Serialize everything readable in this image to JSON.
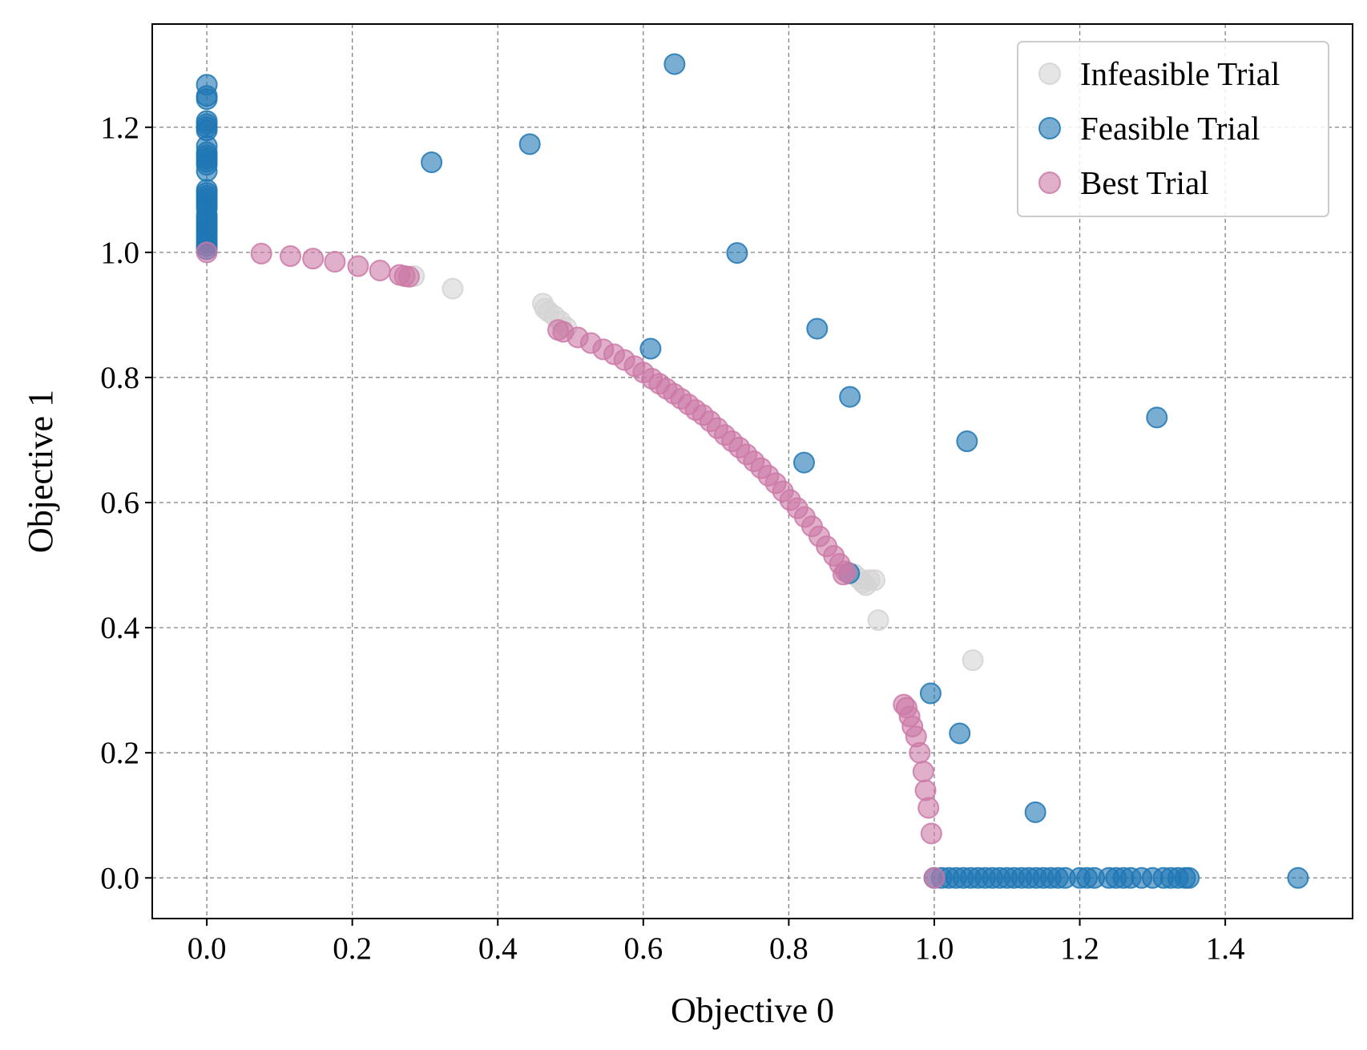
{
  "chart_data": {
    "type": "scatter",
    "title": "",
    "xlabel": "Objective 0",
    "ylabel": "Objective 1",
    "xlim": [
      -0.075,
      1.575
    ],
    "ylim": [
      -0.065,
      1.365
    ],
    "x_ticks": [
      0.0,
      0.2,
      0.4,
      0.6,
      0.8,
      1.0,
      1.2,
      1.4
    ],
    "y_ticks": [
      0.0,
      0.2,
      0.4,
      0.6,
      0.8,
      1.0,
      1.2
    ],
    "x_tick_labels": [
      "0.0",
      "0.2",
      "0.4",
      "0.6",
      "0.8",
      "1.0",
      "1.2",
      "1.4"
    ],
    "y_tick_labels": [
      "0.0",
      "0.2",
      "0.4",
      "0.6",
      "0.8",
      "1.0",
      "1.2"
    ],
    "grid": true,
    "grid_style": "dashed",
    "legend_position": "top-right",
    "series": [
      {
        "name": "Infeasible Trial",
        "color": "#d3d3d3",
        "points": [
          [
            0.285,
            0.962
          ],
          [
            0.338,
            0.942
          ],
          [
            0.462,
            0.918
          ],
          [
            0.465,
            0.91
          ],
          [
            0.47,
            0.905
          ],
          [
            0.478,
            0.898
          ],
          [
            0.486,
            0.89
          ],
          [
            0.494,
            0.88
          ],
          [
            0.89,
            0.485
          ],
          [
            0.897,
            0.478
          ],
          [
            0.902,
            0.472
          ],
          [
            0.906,
            0.468
          ],
          [
            0.911,
            0.476
          ],
          [
            0.918,
            0.476
          ],
          [
            0.923,
            0.412
          ],
          [
            1.053,
            0.348
          ]
        ]
      },
      {
        "name": "Feasible Trial",
        "color": "#1f77b4",
        "points": [
          [
            0.0,
            1.268
          ],
          [
            0.0,
            1.25
          ],
          [
            0.0,
            1.245
          ],
          [
            0.0,
            1.21
          ],
          [
            0.0,
            1.205
          ],
          [
            0.0,
            1.2
          ],
          [
            0.0,
            1.195
          ],
          [
            0.0,
            1.17
          ],
          [
            0.0,
            1.16
          ],
          [
            0.0,
            1.155
          ],
          [
            0.0,
            1.15
          ],
          [
            0.0,
            1.145
          ],
          [
            0.0,
            1.14
          ],
          [
            0.0,
            1.13
          ],
          [
            0.0,
            1.1
          ],
          [
            0.0,
            1.095
          ],
          [
            0.0,
            1.09
          ],
          [
            0.0,
            1.085
          ],
          [
            0.0,
            1.08
          ],
          [
            0.0,
            1.075
          ],
          [
            0.0,
            1.07
          ],
          [
            0.0,
            1.06
          ],
          [
            0.0,
            1.055
          ],
          [
            0.0,
            1.05
          ],
          [
            0.0,
            1.045
          ],
          [
            0.0,
            1.04
          ],
          [
            0.0,
            1.035
          ],
          [
            0.0,
            1.03
          ],
          [
            0.0,
            1.025
          ],
          [
            0.0,
            1.02
          ],
          [
            0.0,
            1.015
          ],
          [
            0.0,
            1.01
          ],
          [
            0.0,
            1.005
          ],
          [
            0.643,
            1.301
          ],
          [
            0.444,
            1.173
          ],
          [
            0.309,
            1.144
          ],
          [
            0.729,
            0.999
          ],
          [
            0.839,
            0.878
          ],
          [
            0.61,
            0.846
          ],
          [
            0.884,
            0.769
          ],
          [
            0.821,
            0.664
          ],
          [
            1.045,
            0.698
          ],
          [
            1.306,
            0.736
          ],
          [
            0.883,
            0.487
          ],
          [
            0.995,
            0.295
          ],
          [
            1.035,
            0.231
          ],
          [
            1.139,
            0.105
          ],
          [
            1.0,
            0.0
          ],
          [
            1.01,
            0.0
          ],
          [
            1.02,
            0.0
          ],
          [
            1.03,
            0.0
          ],
          [
            1.04,
            0.0
          ],
          [
            1.05,
            0.0
          ],
          [
            1.06,
            0.0
          ],
          [
            1.07,
            0.0
          ],
          [
            1.08,
            0.0
          ],
          [
            1.09,
            0.0
          ],
          [
            1.1,
            0.0
          ],
          [
            1.11,
            0.0
          ],
          [
            1.12,
            0.0
          ],
          [
            1.13,
            0.0
          ],
          [
            1.14,
            0.0
          ],
          [
            1.15,
            0.0
          ],
          [
            1.16,
            0.0
          ],
          [
            1.17,
            0.0
          ],
          [
            1.18,
            0.0
          ],
          [
            1.2,
            0.0
          ],
          [
            1.21,
            0.0
          ],
          [
            1.22,
            0.0
          ],
          [
            1.24,
            0.0
          ],
          [
            1.25,
            0.0
          ],
          [
            1.26,
            0.0
          ],
          [
            1.27,
            0.0
          ],
          [
            1.285,
            0.0
          ],
          [
            1.3,
            0.0
          ],
          [
            1.315,
            0.0
          ],
          [
            1.325,
            0.0
          ],
          [
            1.335,
            0.0
          ],
          [
            1.345,
            0.0
          ],
          [
            1.35,
            0.0
          ],
          [
            1.5,
            0.0
          ]
        ]
      },
      {
        "name": "Best Trial",
        "color": "#cc79a7",
        "points": [
          [
            0.0,
            1.0
          ],
          [
            0.075,
            0.998
          ],
          [
            0.115,
            0.994
          ],
          [
            0.146,
            0.99
          ],
          [
            0.176,
            0.985
          ],
          [
            0.208,
            0.978
          ],
          [
            0.238,
            0.971
          ],
          [
            0.265,
            0.964
          ],
          [
            0.272,
            0.962
          ],
          [
            0.278,
            0.961
          ],
          [
            0.483,
            0.876
          ],
          [
            0.49,
            0.873
          ],
          [
            0.51,
            0.864
          ],
          [
            0.528,
            0.855
          ],
          [
            0.545,
            0.845
          ],
          [
            0.56,
            0.837
          ],
          [
            0.574,
            0.828
          ],
          [
            0.588,
            0.818
          ],
          [
            0.6,
            0.808
          ],
          [
            0.612,
            0.798
          ],
          [
            0.622,
            0.79
          ],
          [
            0.632,
            0.782
          ],
          [
            0.642,
            0.774
          ],
          [
            0.652,
            0.766
          ],
          [
            0.662,
            0.757
          ],
          [
            0.672,
            0.748
          ],
          [
            0.682,
            0.74
          ],
          [
            0.692,
            0.73
          ],
          [
            0.702,
            0.719
          ],
          [
            0.712,
            0.708
          ],
          [
            0.722,
            0.698
          ],
          [
            0.732,
            0.688
          ],
          [
            0.742,
            0.677
          ],
          [
            0.752,
            0.666
          ],
          [
            0.762,
            0.655
          ],
          [
            0.772,
            0.643
          ],
          [
            0.782,
            0.631
          ],
          [
            0.792,
            0.618
          ],
          [
            0.802,
            0.604
          ],
          [
            0.812,
            0.591
          ],
          [
            0.822,
            0.577
          ],
          [
            0.832,
            0.562
          ],
          [
            0.842,
            0.546
          ],
          [
            0.852,
            0.53
          ],
          [
            0.862,
            0.515
          ],
          [
            0.87,
            0.502
          ],
          [
            0.878,
            0.49
          ],
          [
            0.875,
            0.485
          ],
          [
            0.958,
            0.277
          ],
          [
            0.962,
            0.272
          ],
          [
            0.966,
            0.258
          ],
          [
            0.97,
            0.242
          ],
          [
            0.975,
            0.226
          ],
          [
            0.98,
            0.2
          ],
          [
            0.985,
            0.17
          ],
          [
            0.988,
            0.14
          ],
          [
            0.992,
            0.112
          ],
          [
            0.996,
            0.071
          ],
          [
            1.0,
            0.0
          ]
        ]
      }
    ]
  }
}
